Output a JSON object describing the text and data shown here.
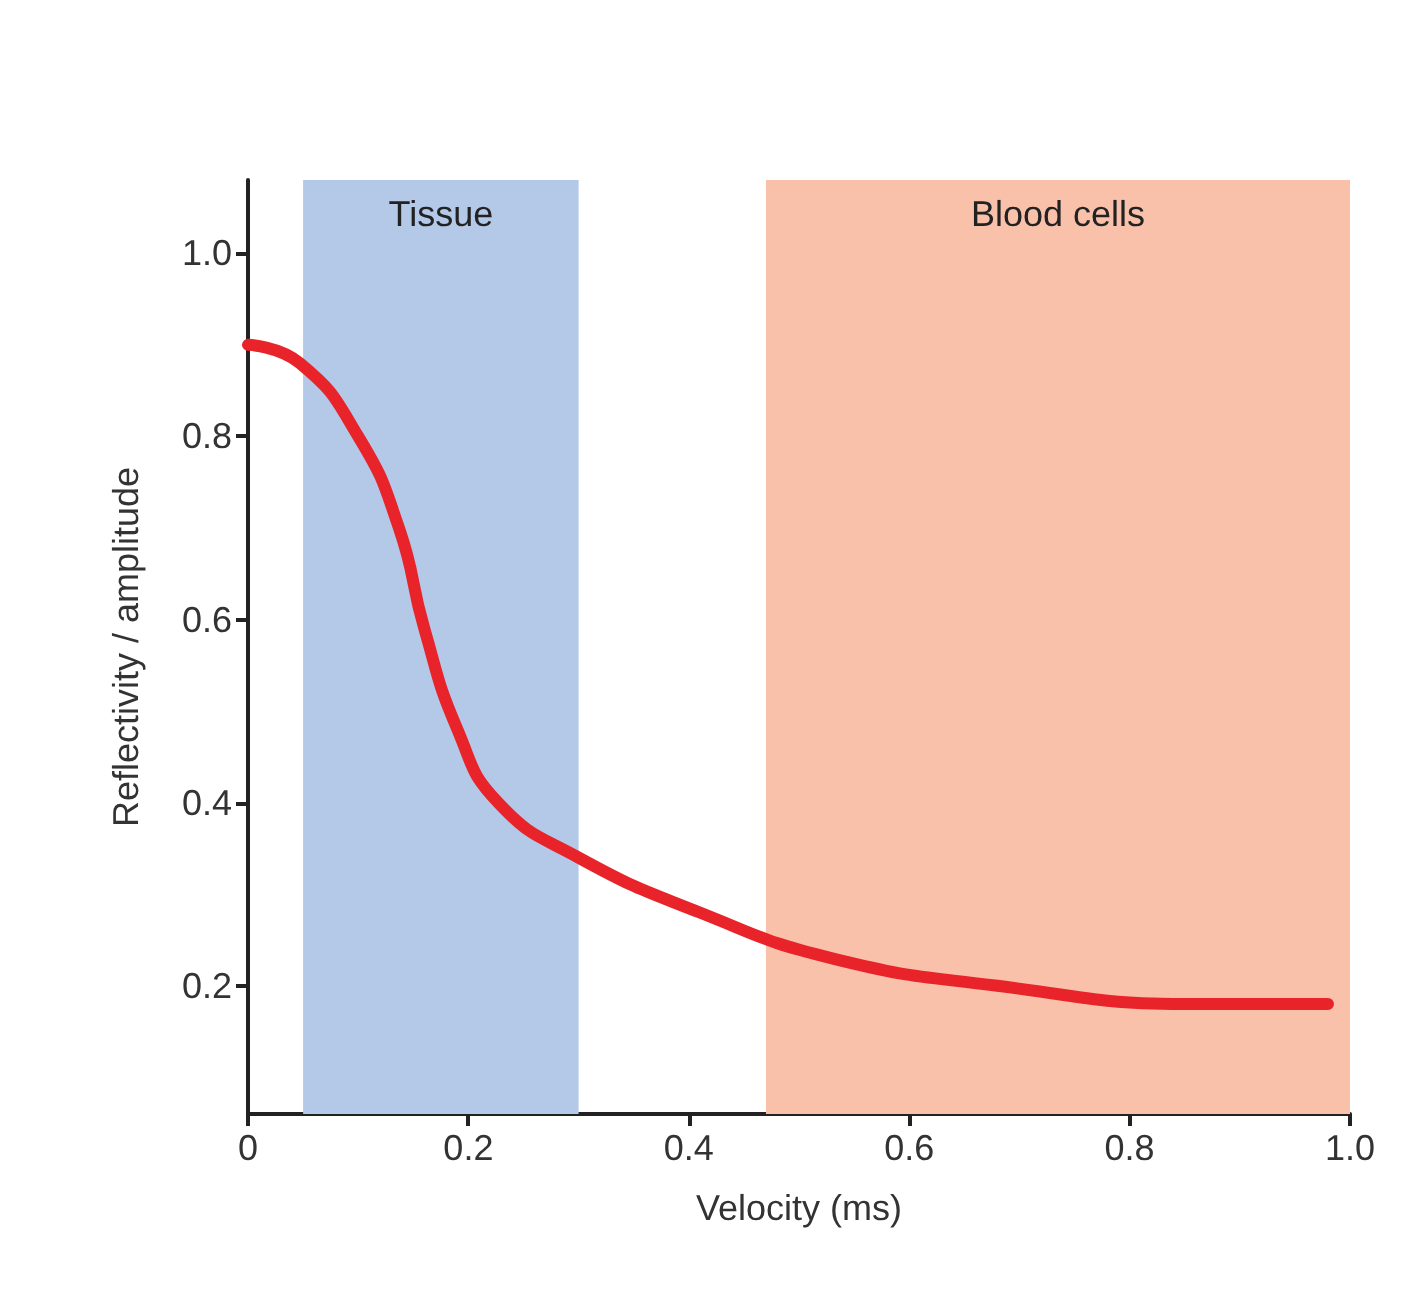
{
  "chart_data": {
    "type": "line",
    "xlabel": "Velocity (ms)",
    "ylabel": "Reflectivity / amplitude",
    "x": [
      0,
      0.047,
      0.1,
      0.137,
      0.16,
      0.19,
      0.227,
      0.3,
      0.41,
      0.53,
      0.68,
      0.86,
      0.98
    ],
    "series": [
      {
        "color": "#e8242a",
        "values": [
          0.9,
          0.88,
          0.8,
          0.7,
          0.59,
          0.48,
          0.4,
          0.34,
          0.28,
          0.23,
          0.2,
          0.18,
          0.18
        ]
      }
    ],
    "xlim": [
      0,
      1
    ],
    "xticks": [
      0,
      0.2,
      0.4,
      0.6,
      0.8,
      {
        "value": 1,
        "label": "1.0"
      }
    ],
    "ylim": [
      0.06,
      1.08
    ],
    "yticks": [
      0.2,
      0.4,
      0.6,
      0.8,
      {
        "value": 1,
        "label": "1.0"
      }
    ],
    "bands": [
      {
        "axis": "x",
        "from": 0.05,
        "to": 0.3,
        "label": "Tissue",
        "color": "#b4c8e8"
      },
      {
        "axis": "x",
        "from": 0.47,
        "to": 1,
        "label": "Blood cells",
        "color": "#f9c0aa"
      }
    ],
    "grid": false,
    "marker": "none",
    "line_style": "solid"
  }
}
